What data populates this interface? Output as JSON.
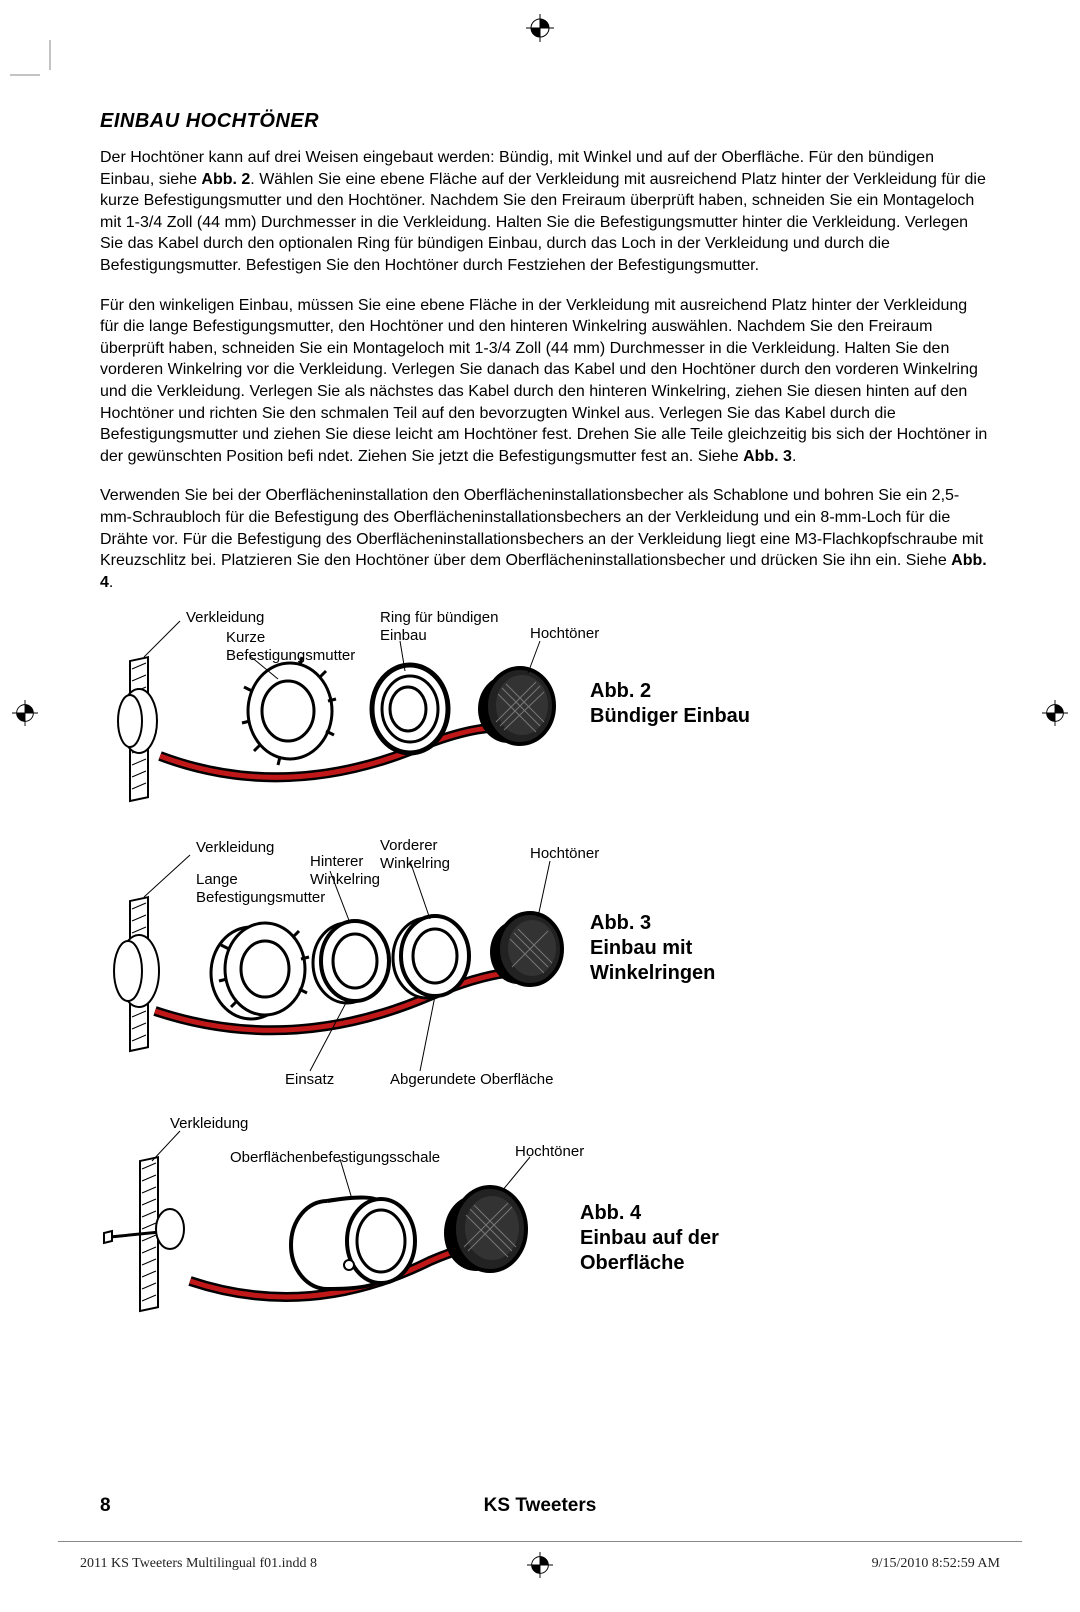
{
  "heading": "EINBAU HOCHTÖNER",
  "para1": "Der Hochtöner kann auf drei Weisen eingebaut werden: Bündig, mit Winkel und auf der Oberfläche. Für den bündigen Einbau, siehe Abb. 2. Wählen Sie eine ebene Fläche auf der Verkleidung mit ausreichend Platz hinter der Verkleidung für die kurze Befestigungsmutter und den Hochtöner. Nachdem Sie den Freiraum überprüft haben, schneiden Sie ein Montageloch mit 1-3/4 Zoll (44 mm) Durchmesser in die Verkleidung. Halten Sie die Befestigungsmutter hinter die Verkleidung. Verlegen Sie das Kabel durch den optionalen Ring für bündigen Einbau, durch das Loch in der Verkleidung und durch die Befestigungsmutter. Befestigen Sie den Hochtöner durch Festziehen der Befestigungsmutter.",
  "para2": "Für den winkeligen Einbau, müssen Sie eine ebene Fläche in der Verkleidung mit ausreichend Platz hinter der Verkleidung für die lange Befestigungsmutter, den Hochtöner und den hinteren Winkelring auswählen. Nachdem Sie den Freiraum überprüft haben, schneiden Sie ein Montageloch mit 1-3/4 Zoll (44 mm) Durchmesser in die Verkleidung. Halten Sie den vorderen Winkelring vor die Verkleidung. Verlegen Sie danach das Kabel und den Hochtöner durch den vorderen Winkelring und die Verkleidung. Verlegen Sie als nächstes das Kabel durch den hinteren Winkelring, ziehen Sie diesen hinten auf den Hochtöner und richten Sie den schmalen Teil auf den bevorzugten Winkel aus. Verlegen Sie das Kabel durch die Befestigungsmutter und ziehen Sie diese leicht am Hochtöner fest. Drehen Sie alle Teile gleichzeitig bis sich der Hochtöner in der gewünschten Position befi ndet. Ziehen Sie jetzt die Befestigungsmutter fest an. Siehe Abb. 3.",
  "para3": "Verwenden Sie bei der Oberflächeninstallation den Oberflächeninstallationsbecher als Schablone und bohren Sie ein 2,5-mm-Schraubloch für die Befestigung des Oberflächeninstallationsbechers an der Verkleidung und ein 8-mm-Loch für die Drähte vor. Für die Befestigung des Oberflächeninstallationsbechers an der Verkleidung liegt eine M3-Flachkopfschraube mit Kreuzschlitz bei. Platzieren Sie den Hochtöner über dem Oberflächeninstallationsbecher und drücken Sie ihn ein. Siehe Abb. 4.",
  "fig2": {
    "labels": {
      "verkleidung": "Verkleidung",
      "kurze": "Kurze",
      "befestigungsmutter": "Befestigungsmutter",
      "ring": "Ring für bündigen",
      "einbau": "Einbau",
      "hochtoner": "Hochtöner"
    },
    "caption_l1": "Abb. 2",
    "caption_l2": "Bündiger Einbau"
  },
  "fig3": {
    "labels": {
      "verkleidung": "Verkleidung",
      "lange": "Lange",
      "befestigungsmutter": "Befestigungsmutter",
      "hinterer": "Hinterer",
      "winkelring1": "Winkelring",
      "vorderer": "Vorderer",
      "winkelring2": "Winkelring",
      "hochtoner": "Hochtöner",
      "einsatz": "Einsatz",
      "abgerundete": "Abgerundete Oberfläche"
    },
    "caption_l1": "Abb. 3",
    "caption_l2": "Einbau mit",
    "caption_l3": "Winkelringen"
  },
  "fig4": {
    "labels": {
      "verkleidung": "Verkleidung",
      "ober": "Oberflächenbefestigungsschale",
      "hochtoner": "Hochtöner"
    },
    "caption_l1": "Abb. 4",
    "caption_l2": "Einbau auf der",
    "caption_l3": "Oberfläche"
  },
  "page_num": "8",
  "footer_title": "KS Tweeters",
  "meta_left": "2011 KS Tweeters Multilingual f01.indd   8",
  "meta_right": "9/15/2010   8:52:59 AM",
  "colors": {
    "red": "#c01818"
  }
}
